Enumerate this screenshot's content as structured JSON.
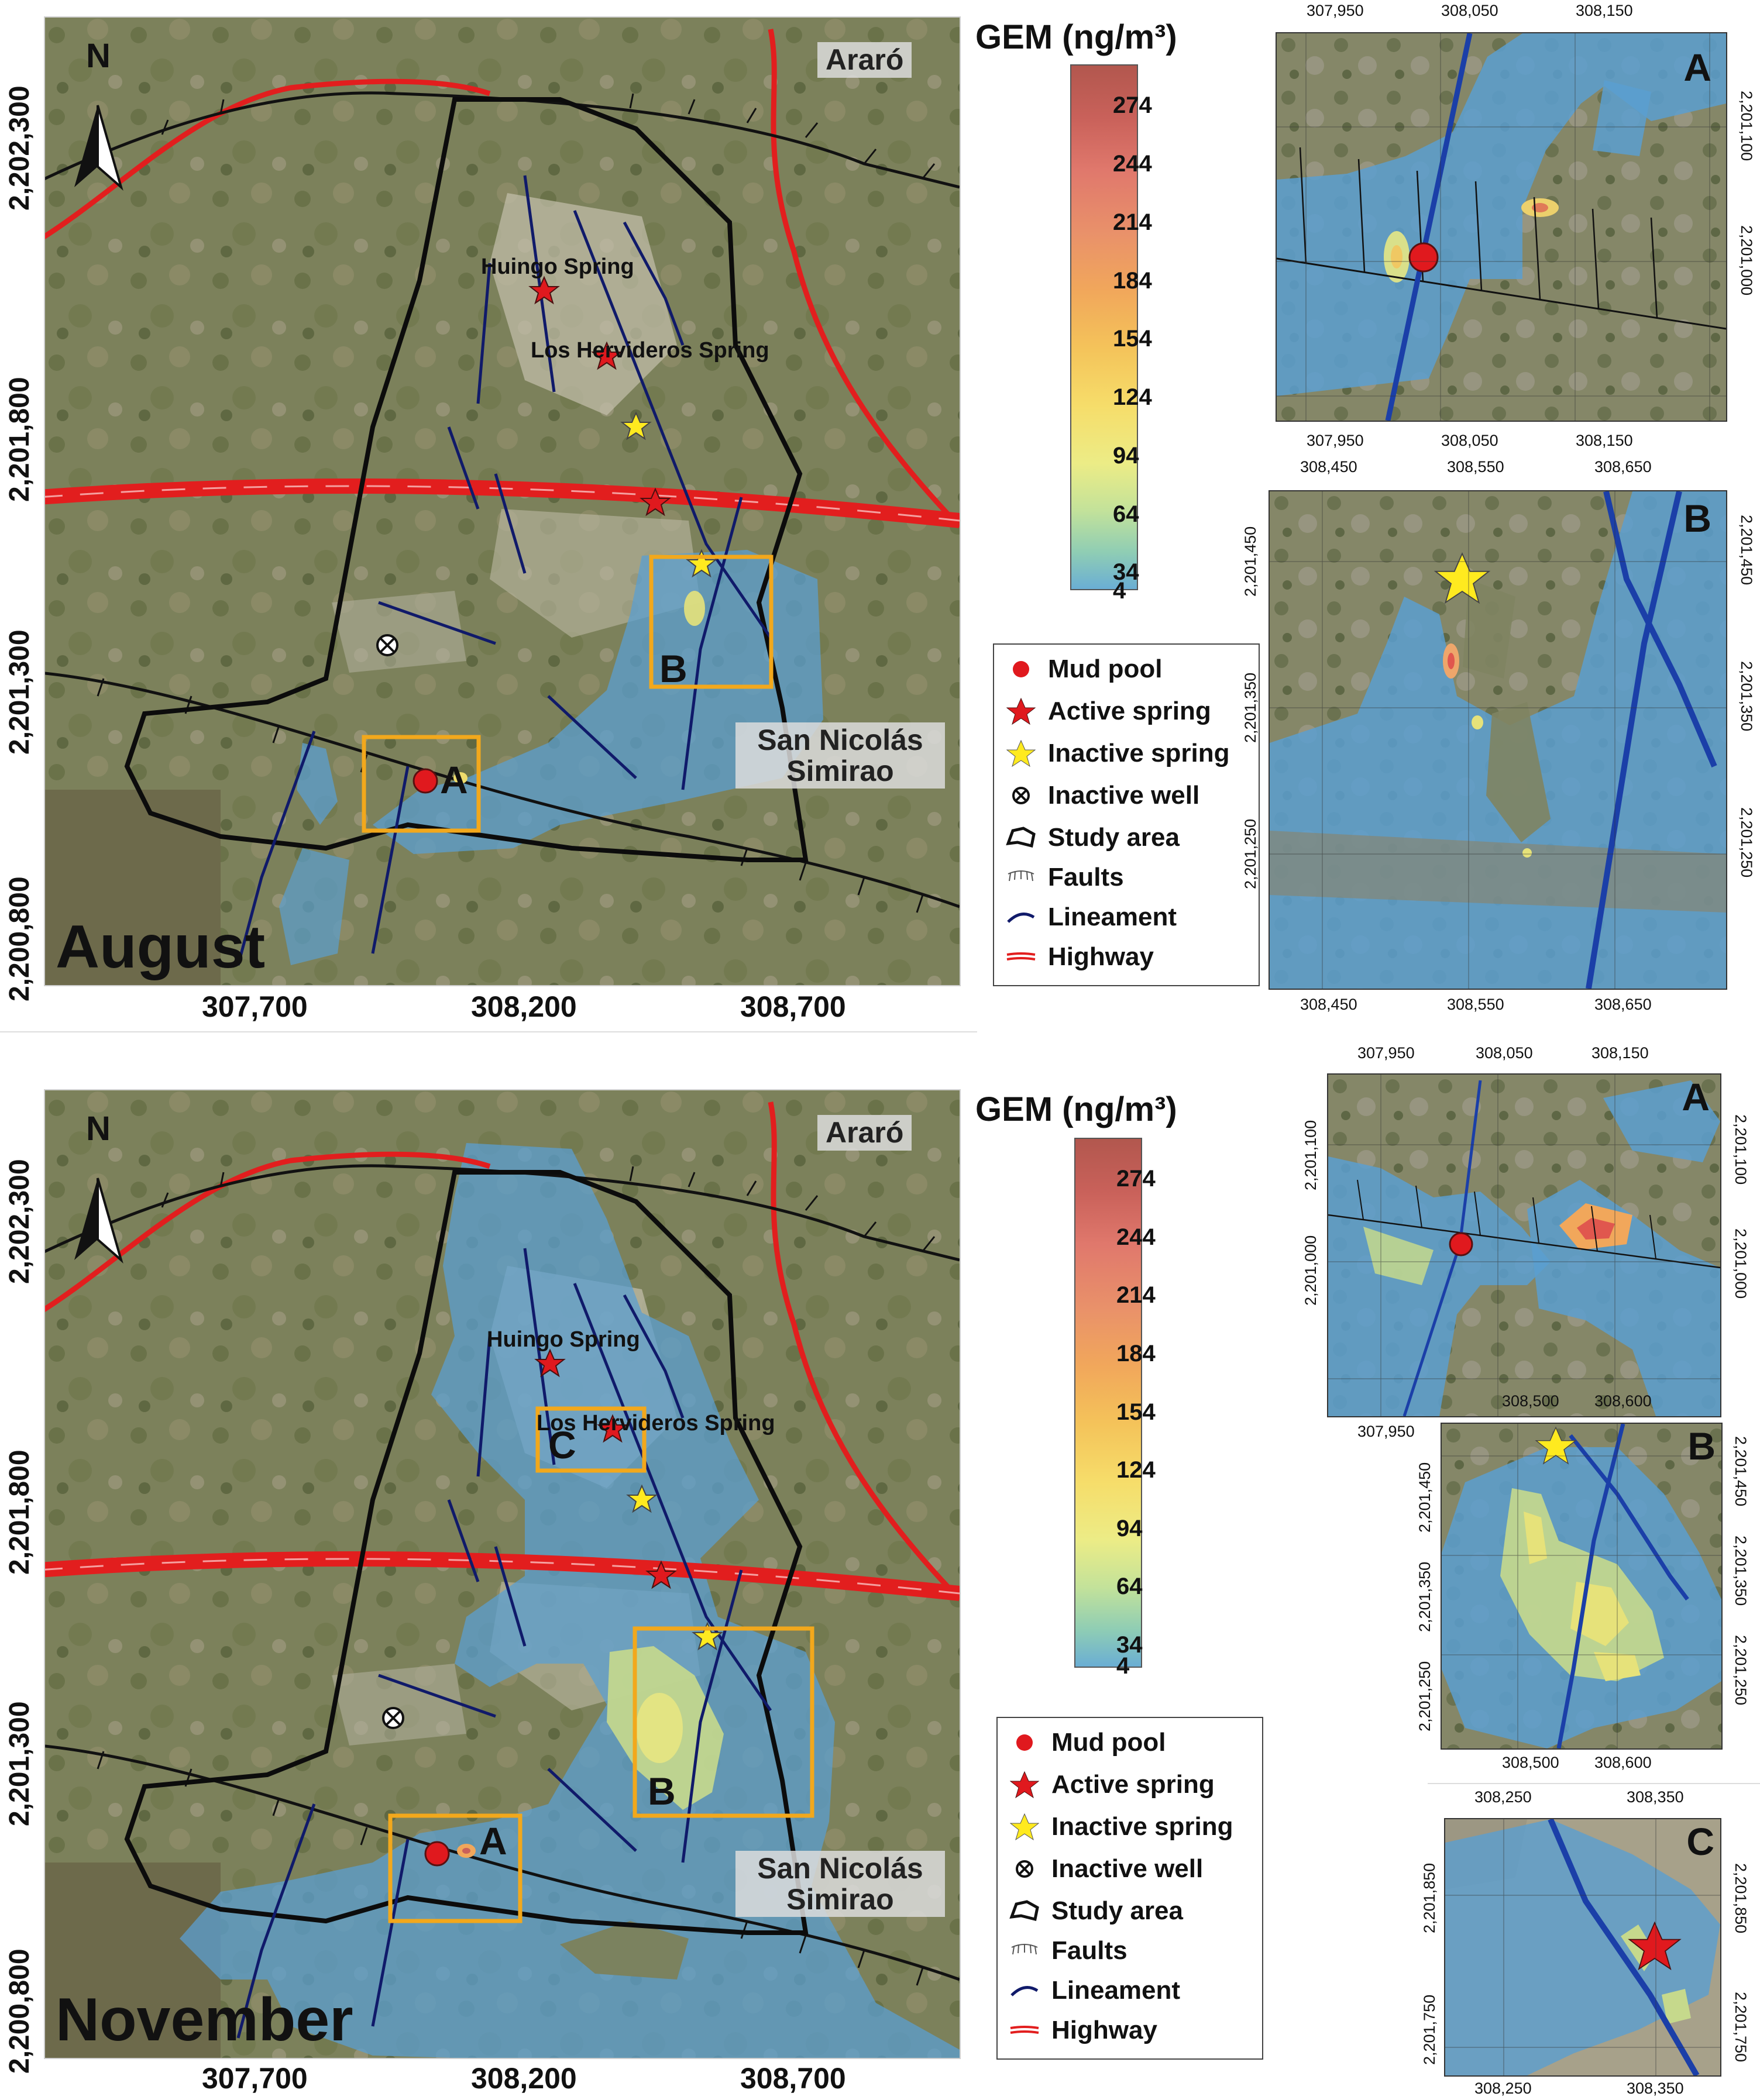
{
  "colorbar": {
    "title": "GEM (ng/m³)",
    "ticks": [
      "274",
      "244",
      "214",
      "184",
      "154",
      "124",
      "94",
      "64",
      "34",
      "4"
    ],
    "colors": [
      "#b2574e",
      "#c9615a",
      "#e0786c",
      "#e9916a",
      "#f1a75b",
      "#f4c35a",
      "#f6dd6a",
      "#ecec86",
      "#c3e29a",
      "#8fcdb4",
      "#6aaed4"
    ]
  },
  "legend": {
    "items": [
      {
        "label": "Mud pool",
        "icon": "red-circle-icon"
      },
      {
        "label": "Active spring",
        "icon": "red-star-icon"
      },
      {
        "label": "Inactive spring",
        "icon": "yellow-star-icon"
      },
      {
        "label": "Inactive well",
        "icon": "circled-x-icon"
      },
      {
        "label": "Study area",
        "icon": "polygon-outline-icon"
      },
      {
        "label": "Faults",
        "icon": "fault-ticks-icon"
      },
      {
        "label": "Lineament",
        "icon": "blue-line-icon"
      },
      {
        "label": "Highway",
        "icon": "red-double-line-icon"
      }
    ]
  },
  "main_maps": [
    {
      "month": "August",
      "north": "N",
      "y_ticks": [
        "2,202,300",
        "2,201,800",
        "2,201,300",
        "2,200,800"
      ],
      "x_ticks": [
        "307,700",
        "308,200",
        "308,700"
      ],
      "towns": [
        "Araró",
        "San Nicolás Simirao"
      ],
      "springs": [
        "Huingo Spring",
        "Los Hervideros Spring"
      ],
      "boxes": [
        "A",
        "B"
      ]
    },
    {
      "month": "November",
      "north": "N",
      "y_ticks": [
        "2,202,300",
        "2,201,800",
        "2,201,300",
        "2,200,800"
      ],
      "x_ticks": [
        "307,700",
        "308,200",
        "308,700"
      ],
      "towns": [
        "Araró",
        "San Nicolás Simirao"
      ],
      "springs": [
        "Huingo Spring",
        "Los Hervideros Spring"
      ],
      "boxes": [
        "A",
        "B",
        "C"
      ]
    }
  ],
  "insets": {
    "aug_A": {
      "letter": "A",
      "x_ticks": [
        "307,950",
        "308,050",
        "308,150"
      ],
      "y_ticks": [
        "2,201,100",
        "2,201,000"
      ]
    },
    "aug_B": {
      "letter": "B",
      "x_ticks": [
        "308,450",
        "308,550",
        "308,650"
      ],
      "y_ticks": [
        "2,201,450",
        "2,201,350",
        "2,201,250"
      ]
    },
    "nov_A": {
      "letter": "A",
      "x_ticks": [
        "307,950",
        "308,050",
        "308,150"
      ],
      "y_ticks": [
        "2,201,100",
        "2,201,000"
      ]
    },
    "nov_B": {
      "letter": "B",
      "x_ticks": [
        "308,500",
        "308,600"
      ],
      "y_ticks": [
        "2,201,450",
        "2,201,350",
        "2,201,250"
      ]
    },
    "nov_C": {
      "letter": "C",
      "x_ticks": [
        "308,250",
        "308,350"
      ],
      "y_ticks": [
        "2,201,850",
        "2,201,750"
      ]
    }
  }
}
